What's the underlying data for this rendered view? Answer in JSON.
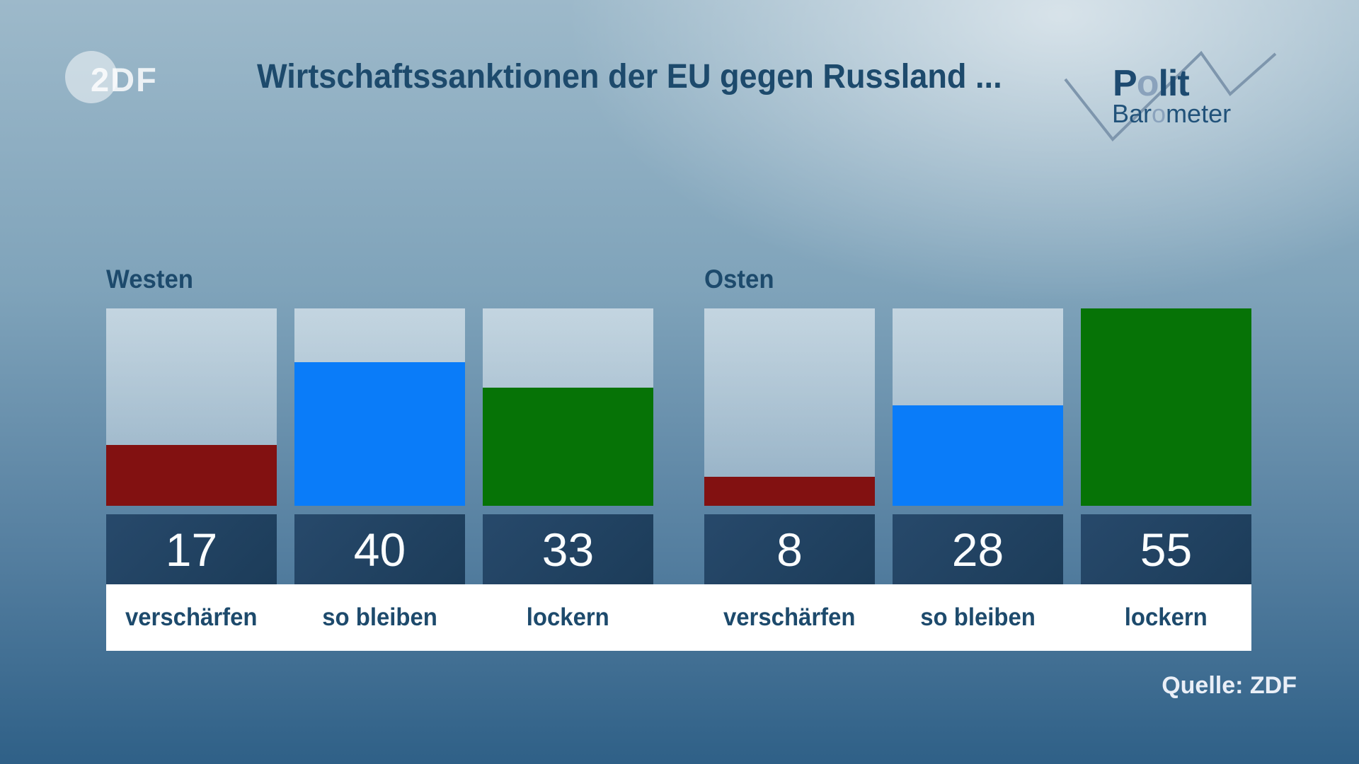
{
  "header": {
    "zdf_logo_text": "2DF",
    "polit_logo": {
      "polit_pre": "P",
      "polit_o": "o",
      "polit_post": "lit",
      "baro_pre": "Bar",
      "baro_o": "o",
      "baro_post": "meter"
    }
  },
  "chart_data": {
    "type": "bar",
    "title": "Wirtschaftssanktionen der EU gegen Russland ...",
    "categories": [
      "verschärfen",
      "so bleiben",
      "lockern"
    ],
    "series": [
      {
        "name": "Westen",
        "values": [
          17,
          40,
          33
        ]
      },
      {
        "name": "Osten",
        "values": [
          8,
          28,
          55
        ]
      }
    ],
    "ylim": [
      0,
      55
    ],
    "colors": {
      "verschärfen": "#821111",
      "so bleiben": "#0a7cf9",
      "lockern": "#067306"
    },
    "value_box_color": "#1d3f5d",
    "track_color": "#b3c9d6",
    "legend_position": "none",
    "grid": false
  },
  "footer": {
    "source": "Quelle: ZDF"
  }
}
